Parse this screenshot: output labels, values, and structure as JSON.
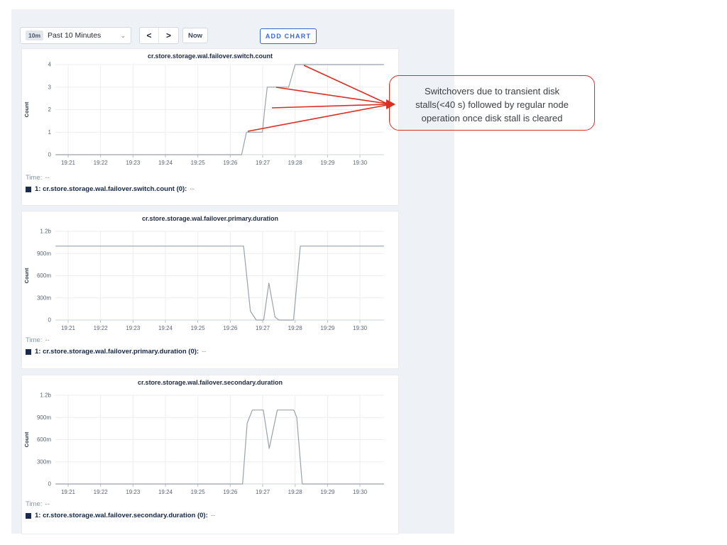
{
  "toolbar": {
    "time_window_badge": "10m",
    "time_window_label": "Past 10 Minutes",
    "dropdown_icon": "⌄",
    "prev_icon": "<",
    "next_icon": ">",
    "now_label": "Now",
    "add_chart_label": "ADD CHART"
  },
  "colors": {
    "accent_blue": "#3b66d4",
    "legend_swatch": "#1b2b4d",
    "series_line": "#99a1ab",
    "annotation_red": "#dd2c20"
  },
  "annotation": {
    "lines": [
      "Switchovers due to transient disk",
      "stalls(<40 s) followed by regular node",
      "operation once disk stall is cleared"
    ]
  },
  "chart_data": [
    {
      "type": "line",
      "title": "cr.store.storage.wal.failover.switch.count",
      "ylabel": "Count",
      "x_unit": "minutes after 19:20",
      "x_ticks": [
        "19:21",
        "19:22",
        "19:23",
        "19:24",
        "19:25",
        "19:26",
        "19:27",
        "19:28",
        "19:29",
        "19:30"
      ],
      "x_tick_values": [
        1,
        2,
        3,
        4,
        5,
        6,
        7,
        8,
        9,
        10
      ],
      "y_ticks": [
        {
          "label": "4",
          "value": 4
        },
        {
          "label": "3",
          "value": 3
        },
        {
          "label": "2",
          "value": 2
        },
        {
          "label": "1",
          "value": 1
        },
        {
          "label": "0",
          "value": 0
        }
      ],
      "y_max": 4,
      "series": [
        {
          "name": "1: cr.store.storage.wal.failover.switch.count (0)",
          "points": [
            [
              0.61,
              0
            ],
            [
              6.35,
              0
            ],
            [
              6.5,
              1
            ],
            [
              6.99,
              1
            ],
            [
              7.06,
              2
            ],
            [
              7.14,
              3
            ],
            [
              7.8,
              3
            ],
            [
              8.0,
              4
            ],
            [
              10.74,
              4
            ]
          ]
        }
      ],
      "time_label": "Time:",
      "time_value": "--",
      "legend_label": "1: cr.store.storage.wal.failover.switch.count (0):",
      "legend_value": "--"
    },
    {
      "type": "line",
      "title": "cr.store.storage.wal.failover.primary.duration",
      "ylabel": "Count",
      "x_unit": "minutes after 19:20",
      "x_ticks": [
        "19:21",
        "19:22",
        "19:23",
        "19:24",
        "19:25",
        "19:26",
        "19:27",
        "19:28",
        "19:29",
        "19:30"
      ],
      "x_tick_values": [
        1,
        2,
        3,
        4,
        5,
        6,
        7,
        8,
        9,
        10
      ],
      "y_ticks": [
        {
          "label": "1.2b",
          "value": 1.2
        },
        {
          "label": "900m",
          "value": 0.9
        },
        {
          "label": "600m",
          "value": 0.6
        },
        {
          "label": "300m",
          "value": 0.3
        },
        {
          "label": "0",
          "value": 0
        }
      ],
      "y_max": 1.2,
      "series": [
        {
          "name": "1: cr.store.storage.wal.failover.primary.duration (0)",
          "points": [
            [
              0.61,
              1.0
            ],
            [
              6.41,
              1.0
            ],
            [
              6.62,
              0.12
            ],
            [
              6.8,
              0
            ],
            [
              7.03,
              0
            ],
            [
              7.19,
              0.5
            ],
            [
              7.38,
              0.04
            ],
            [
              7.5,
              0
            ],
            [
              7.95,
              0
            ],
            [
              8.16,
              1.0
            ],
            [
              10.74,
              1.0
            ]
          ]
        }
      ],
      "time_label": "Time:",
      "time_value": "--",
      "legend_label": "1: cr.store.storage.wal.failover.primary.duration (0):",
      "legend_value": "--"
    },
    {
      "type": "line",
      "title": "cr.store.storage.wal.failover.secondary.duration",
      "ylabel": "Count",
      "x_unit": "minutes after 19:20",
      "x_ticks": [
        "19:21",
        "19:22",
        "19:23",
        "19:24",
        "19:25",
        "19:26",
        "19:27",
        "19:28",
        "19:29",
        "19:30"
      ],
      "x_tick_values": [
        1,
        2,
        3,
        4,
        5,
        6,
        7,
        8,
        9,
        10
      ],
      "y_ticks": [
        {
          "label": "1.2b",
          "value": 1.2
        },
        {
          "label": "900m",
          "value": 0.9
        },
        {
          "label": "600m",
          "value": 0.6
        },
        {
          "label": "300m",
          "value": 0.3
        },
        {
          "label": "0",
          "value": 0
        }
      ],
      "y_max": 1.2,
      "series": [
        {
          "name": "1: cr.store.storage.wal.failover.secondary.duration (0)",
          "points": [
            [
              0.61,
              0
            ],
            [
              6.38,
              0
            ],
            [
              6.52,
              0.82
            ],
            [
              6.68,
              1.0
            ],
            [
              7.02,
              1.0
            ],
            [
              7.2,
              0.48
            ],
            [
              7.45,
              1.0
            ],
            [
              7.96,
              1.0
            ],
            [
              8.05,
              0.9
            ],
            [
              8.22,
              0
            ],
            [
              10.74,
              0
            ]
          ]
        }
      ],
      "time_label": "Time:",
      "time_value": "--",
      "legend_label": "1: cr.store.storage.wal.failover.secondary.duration (0):",
      "legend_value": "--"
    }
  ]
}
